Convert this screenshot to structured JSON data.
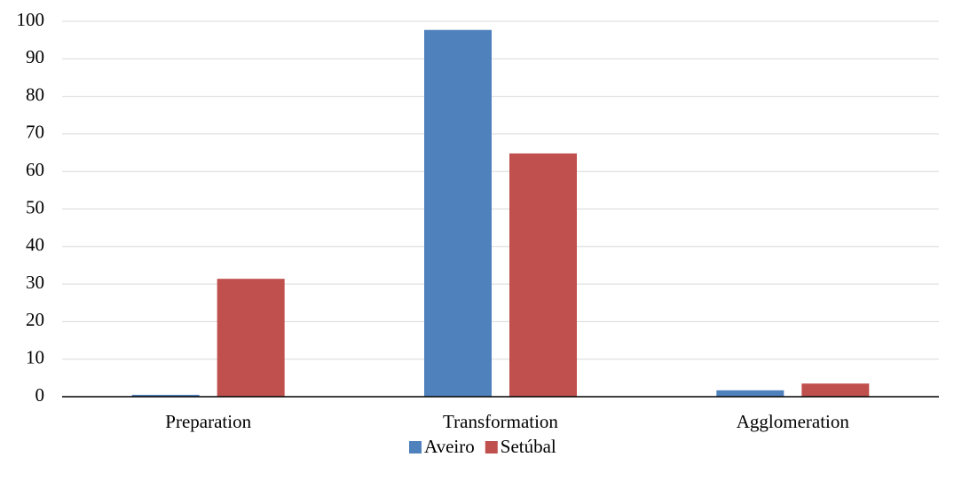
{
  "chart_data": {
    "type": "bar",
    "categories": [
      "Preparation",
      "Transformation",
      "Agglomeration"
    ],
    "series": [
      {
        "name": "Aveiro",
        "color": "#4f81bd",
        "values": [
          0.5,
          97.7,
          1.7
        ]
      },
      {
        "name": "Setúbal",
        "color": "#c0504d",
        "values": [
          31.4,
          64.8,
          3.5
        ]
      }
    ],
    "ylim": [
      0,
      100
    ],
    "yticks": [
      0,
      10,
      20,
      30,
      40,
      50,
      60,
      70,
      80,
      90,
      100
    ],
    "grid": true,
    "legend": "bottom"
  }
}
